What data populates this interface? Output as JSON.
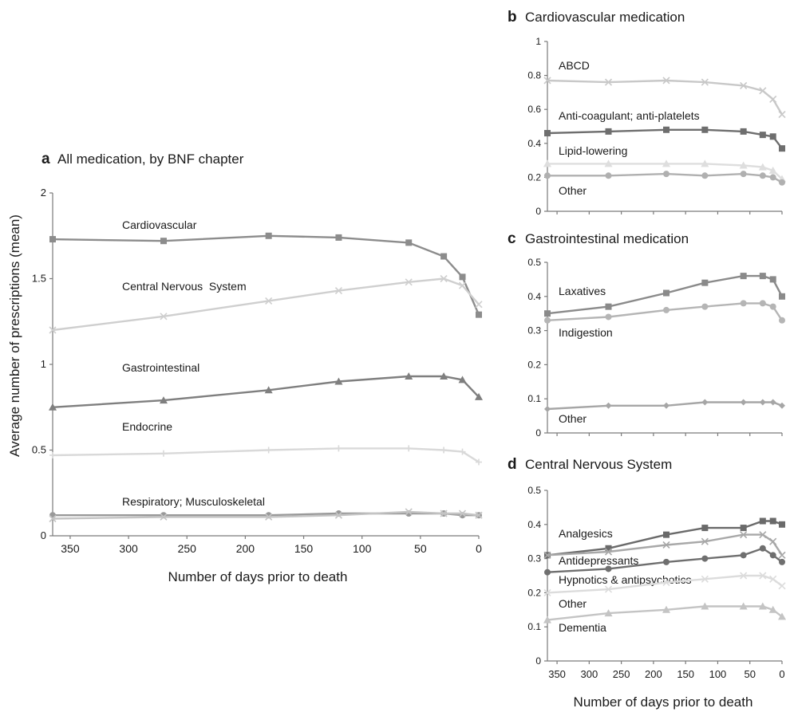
{
  "figure": {
    "shared_xlabel_right": "Number of days prior to death"
  },
  "chart_data": [
    {
      "panel": "a",
      "type": "line",
      "title": "All medication, by BNF chapter",
      "xlabel": "Number of days prior to death",
      "ylabel": "Average number of prescriptions (mean)",
      "xlim": [
        365,
        0
      ],
      "ylim": [
        0,
        2
      ],
      "xticks": [
        350,
        300,
        250,
        200,
        150,
        100,
        50,
        0
      ],
      "yticks": [
        0,
        0.5,
        1,
        1.5,
        2
      ],
      "series": [
        {
          "name": "Cardiovascular",
          "color": "#8c8c8c",
          "marker": "square",
          "x": [
            365,
            270,
            180,
            120,
            60,
            30,
            14,
            0
          ],
          "y": [
            1.73,
            1.72,
            1.75,
            1.74,
            1.71,
            1.63,
            1.51,
            1.29
          ]
        },
        {
          "name": "Central Nervous System",
          "color": "#cfcfcf",
          "marker": "x",
          "x": [
            365,
            270,
            180,
            120,
            60,
            30,
            14,
            0
          ],
          "y": [
            1.2,
            1.28,
            1.37,
            1.43,
            1.48,
            1.5,
            1.46,
            1.35
          ]
        },
        {
          "name": "Gastrointestinal",
          "color": "#7f7f7f",
          "marker": "triangle",
          "x": [
            365,
            270,
            180,
            120,
            60,
            30,
            14,
            0
          ],
          "y": [
            0.75,
            0.79,
            0.85,
            0.9,
            0.93,
            0.93,
            0.91,
            0.81
          ]
        },
        {
          "name": "Endocrine",
          "color": "#d9d9d9",
          "marker": "plus",
          "x": [
            365,
            270,
            180,
            120,
            60,
            30,
            14,
            0
          ],
          "y": [
            0.47,
            0.48,
            0.5,
            0.51,
            0.51,
            0.5,
            0.49,
            0.43
          ]
        },
        {
          "name": "Respiratory",
          "color": "#999999",
          "marker": "circle",
          "x": [
            365,
            270,
            180,
            120,
            60,
            30,
            14,
            0
          ],
          "y": [
            0.12,
            0.12,
            0.12,
            0.13,
            0.13,
            0.13,
            0.12,
            0.12
          ]
        },
        {
          "name": "Musculoskeletal",
          "color": "#c4c4c4",
          "marker": "x",
          "x": [
            365,
            270,
            180,
            120,
            60,
            30,
            14,
            0
          ],
          "y": [
            0.1,
            0.11,
            0.11,
            0.12,
            0.14,
            0.13,
            0.13,
            0.12
          ]
        }
      ],
      "annotations": [
        "Cardiovascular",
        "Central Nervous  System",
        "Gastrointestinal",
        "Endocrine",
        "Respiratory; Musculoskeletal"
      ]
    },
    {
      "panel": "b",
      "type": "line",
      "title": "Cardiovascular medication",
      "xlim": [
        365,
        0
      ],
      "ylim": [
        0,
        1
      ],
      "yticks": [
        0,
        0.2,
        0.4,
        0.6,
        0.8,
        1
      ],
      "series": [
        {
          "name": "ABCD",
          "color": "#c8c8c8",
          "marker": "x",
          "x": [
            365,
            270,
            180,
            120,
            60,
            30,
            14,
            0
          ],
          "y": [
            0.77,
            0.76,
            0.77,
            0.76,
            0.74,
            0.71,
            0.66,
            0.57
          ]
        },
        {
          "name": "Anti-coagulant; anti-platelets",
          "color": "#6e6e6e",
          "marker": "square",
          "x": [
            365,
            270,
            180,
            120,
            60,
            30,
            14,
            0
          ],
          "y": [
            0.46,
            0.47,
            0.48,
            0.48,
            0.47,
            0.45,
            0.44,
            0.37
          ]
        },
        {
          "name": "Lipid-lowering",
          "color": "#dedede",
          "marker": "triangle",
          "x": [
            365,
            270,
            180,
            120,
            60,
            30,
            14,
            0
          ],
          "y": [
            0.28,
            0.28,
            0.28,
            0.28,
            0.27,
            0.26,
            0.24,
            0.19
          ]
        },
        {
          "name": "Other",
          "color": "#b0b0b0",
          "marker": "circle",
          "x": [
            365,
            270,
            180,
            120,
            60,
            30,
            14,
            0
          ],
          "y": [
            0.21,
            0.21,
            0.22,
            0.21,
            0.22,
            0.21,
            0.2,
            0.17
          ]
        }
      ],
      "annotations": [
        "ABCD",
        "Anti-coagulant; anti-platelets",
        "Lipid-lowering",
        "Other"
      ]
    },
    {
      "panel": "c",
      "type": "line",
      "title": "Gastrointestinal medication",
      "xlim": [
        365,
        0
      ],
      "ylim": [
        0,
        0.5
      ],
      "yticks": [
        0,
        0.1,
        0.2,
        0.3,
        0.4,
        0.5
      ],
      "series": [
        {
          "name": "Laxatives",
          "color": "#8a8a8a",
          "marker": "square",
          "x": [
            365,
            270,
            180,
            120,
            60,
            30,
            14,
            0
          ],
          "y": [
            0.35,
            0.37,
            0.41,
            0.44,
            0.46,
            0.46,
            0.45,
            0.4
          ]
        },
        {
          "name": "Indigestion",
          "color": "#b5b5b5",
          "marker": "circle",
          "x": [
            365,
            270,
            180,
            120,
            60,
            30,
            14,
            0
          ],
          "y": [
            0.33,
            0.34,
            0.36,
            0.37,
            0.38,
            0.38,
            0.37,
            0.33
          ]
        },
        {
          "name": "Other",
          "color": "#a6a6a6",
          "marker": "diamond",
          "x": [
            365,
            270,
            180,
            120,
            60,
            30,
            14,
            0
          ],
          "y": [
            0.07,
            0.08,
            0.08,
            0.09,
            0.09,
            0.09,
            0.09,
            0.08
          ]
        }
      ],
      "annotations": [
        "Laxatives",
        "Indigestion",
        "Other"
      ]
    },
    {
      "panel": "d",
      "type": "line",
      "title": "Central Nervous System",
      "xlabel": "Number of days prior to death",
      "xlim": [
        365,
        0
      ],
      "ylim": [
        0,
        0.5
      ],
      "xticks": [
        350,
        300,
        250,
        200,
        150,
        100,
        50,
        0
      ],
      "yticks": [
        0,
        0.1,
        0.2,
        0.3,
        0.4,
        0.5
      ],
      "series": [
        {
          "name": "Analgesics",
          "color": "#6a6a6a",
          "marker": "square",
          "x": [
            365,
            270,
            180,
            120,
            60,
            30,
            14,
            0
          ],
          "y": [
            0.31,
            0.33,
            0.37,
            0.39,
            0.39,
            0.41,
            0.41,
            0.4
          ]
        },
        {
          "name": "Antidepressants",
          "color": "#a8a8a8",
          "marker": "x",
          "x": [
            365,
            270,
            180,
            120,
            60,
            30,
            14,
            0
          ],
          "y": [
            0.31,
            0.32,
            0.34,
            0.35,
            0.37,
            0.37,
            0.35,
            0.31
          ]
        },
        {
          "name": "Hypnotics & antipsychotics",
          "color": "#6f6f6f",
          "marker": "circle",
          "x": [
            365,
            270,
            180,
            120,
            60,
            30,
            14,
            0
          ],
          "y": [
            0.26,
            0.27,
            0.29,
            0.3,
            0.31,
            0.33,
            0.31,
            0.29
          ]
        },
        {
          "name": "Other",
          "color": "#dcdcdc",
          "marker": "x",
          "x": [
            365,
            270,
            180,
            120,
            60,
            30,
            14,
            0
          ],
          "y": [
            0.2,
            0.21,
            0.23,
            0.24,
            0.25,
            0.25,
            0.24,
            0.22
          ]
        },
        {
          "name": "Dementia",
          "color": "#c4c4c4",
          "marker": "triangle",
          "x": [
            365,
            270,
            180,
            120,
            60,
            30,
            14,
            0
          ],
          "y": [
            0.12,
            0.14,
            0.15,
            0.16,
            0.16,
            0.16,
            0.15,
            0.13
          ]
        }
      ],
      "annotations": [
        "Analgesics",
        "Antidepressants",
        "Hypnotics & antipsychotics",
        "Other",
        "Dementia"
      ]
    }
  ]
}
